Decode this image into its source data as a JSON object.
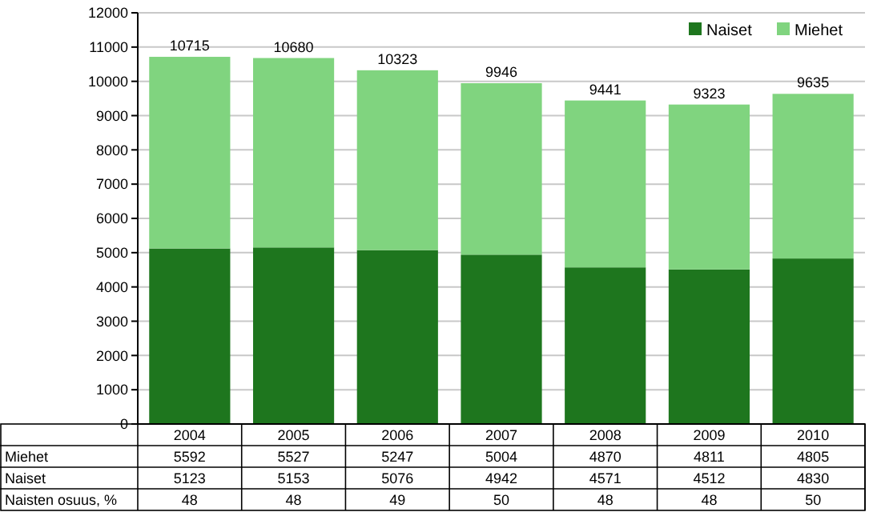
{
  "chart_data": {
    "type": "bar",
    "stacked": true,
    "categories": [
      "2004",
      "2005",
      "2006",
      "2007",
      "2008",
      "2009",
      "2010"
    ],
    "series": [
      {
        "name": "Naiset",
        "color": "#1e761e",
        "values": [
          5123,
          5153,
          5076,
          4942,
          4571,
          4512,
          4830
        ]
      },
      {
        "name": "Miehet",
        "color": "#80d47f",
        "values": [
          5592,
          5527,
          5247,
          5004,
          4870,
          4811,
          4805
        ]
      }
    ],
    "totals": [
      "10715",
      "10680",
      "10323",
      "9946",
      "9441",
      "9323",
      "9635"
    ],
    "ylim": [
      0,
      12000
    ],
    "yticks": [
      0,
      1000,
      2000,
      3000,
      4000,
      5000,
      6000,
      7000,
      8000,
      9000,
      10000,
      11000,
      12000
    ],
    "grid": "y",
    "legend": "top right",
    "data_labels": true,
    "annotations": [
      "Naisten osuus, %",
      "48",
      "48",
      "49",
      "50",
      "48",
      "48",
      "50"
    ]
  }
}
